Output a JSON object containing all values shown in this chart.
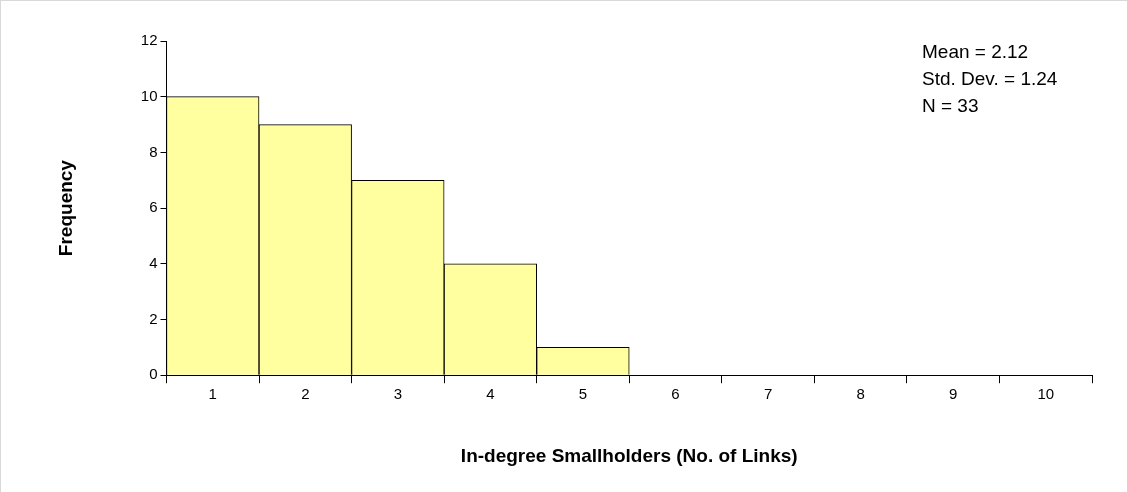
{
  "chart_data": {
    "type": "bar",
    "xlabel": "In-degree Smallholders (No. of Links)",
    "ylabel": "Frequency",
    "categories": [
      "1",
      "2",
      "3",
      "4",
      "5",
      "6",
      "7",
      "8",
      "9",
      "10"
    ],
    "values": [
      10,
      9,
      7,
      4,
      1,
      0,
      0,
      0,
      0,
      0
    ],
    "color": "#ffffa0",
    "ylim": [
      0,
      12
    ],
    "yticks": [
      0,
      2,
      4,
      6,
      8,
      10,
      12
    ],
    "annotations": [
      "Mean = 2.12",
      "Std. Dev. = 1.24",
      "N = 33"
    ]
  }
}
